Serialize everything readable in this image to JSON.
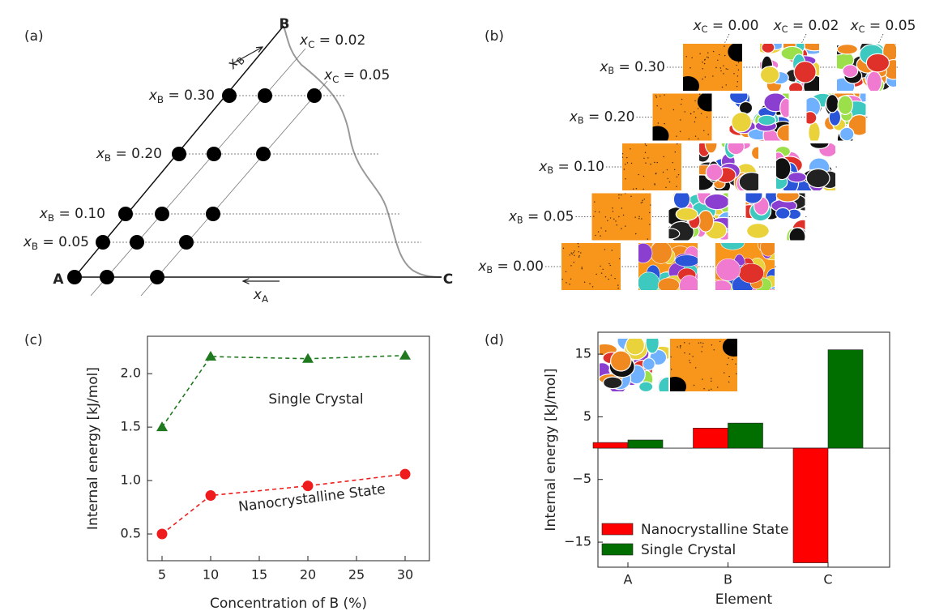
{
  "panel_labels": [
    "(a)",
    "(b)",
    "(c)",
    "(d)"
  ],
  "ternary": {
    "corners": [
      "A",
      "B",
      "C"
    ],
    "arrows": [
      {
        "symbol": "x",
        "subscript": "B"
      },
      {
        "symbol": "x",
        "subscript": "A"
      }
    ],
    "xb_labels": [
      {
        "symbol": "x",
        "subscript": "B",
        "text": " = 0.30"
      },
      {
        "symbol": "x",
        "subscript": "B",
        "text": " = 0.20"
      },
      {
        "symbol": "x",
        "subscript": "B",
        "text": " = 0.10"
      },
      {
        "symbol": "x",
        "subscript": "B",
        "text": " = 0.05"
      }
    ],
    "xc_labels": [
      {
        "symbol": "x",
        "subscript": "C",
        "text": " = 0.02"
      },
      {
        "symbol": "x",
        "subscript": "C",
        "text": " = 0.05"
      }
    ]
  },
  "micrographs": {
    "xb_labels": [
      {
        "symbol": "x",
        "subscript": "B",
        "text": " = 0.30"
      },
      {
        "symbol": "x",
        "subscript": "B",
        "text": " = 0.20"
      },
      {
        "symbol": "x",
        "subscript": "B",
        "text": " = 0.10"
      },
      {
        "symbol": "x",
        "subscript": "B",
        "text": " = 0.05"
      },
      {
        "symbol": "x",
        "subscript": "B",
        "text": " = 0.00"
      }
    ],
    "xc_labels": [
      {
        "symbol": "x",
        "subscript": "C",
        "text": " = 0.00"
      },
      {
        "symbol": "x",
        "subscript": "C",
        "text": " = 0.02"
      },
      {
        "symbol": "x",
        "subscript": "C",
        "text": " = 0.05"
      }
    ]
  },
  "chart_data": [
    {
      "type": "line",
      "x_label": "Concentration of B (%)",
      "y_label": "Internal energy [kJ/mol]",
      "x": [
        5,
        10,
        20,
        30
      ],
      "series": [
        {
          "name": "Single Crystal",
          "color": "#1f7a1f",
          "marker": "triangle",
          "values": [
            1.5,
            2.16,
            2.14,
            2.17
          ]
        },
        {
          "name": "Nanocrystalline State",
          "color": "#ee1c1c",
          "marker": "circle",
          "values": [
            0.5,
            0.86,
            0.95,
            1.06
          ]
        }
      ],
      "linestyle": "dashed",
      "xlim": [
        3.5,
        32.5
      ],
      "ylim": [
        0.25,
        2.35
      ],
      "xticks": [
        5,
        10,
        15,
        20,
        25,
        30
      ],
      "yticks": [
        0.5,
        {
          "value": 1.0,
          "label": "1.0"
        },
        1.5,
        {
          "value": 2.0,
          "label": "2.0"
        }
      ]
    },
    {
      "type": "bar",
      "x_label": "Element",
      "y_label": "Internal energy [kJ/mol]",
      "categories": [
        "A",
        "B",
        "C"
      ],
      "series": [
        {
          "name": "Nanocrystalline State",
          "color": "#ff0000",
          "values": [
            0.9,
            3.2,
            -18.3
          ]
        },
        {
          "name": "Single Crystal",
          "color": "#006f00",
          "values": [
            1.3,
            4.0,
            15.7
          ]
        }
      ],
      "ylim": [
        -19,
        18.5
      ],
      "yticks": [
        {
          "value": -15,
          "label": "−15"
        },
        {
          "value": -5,
          "label": "−5"
        },
        5,
        15
      ],
      "legend": "lower left"
    }
  ]
}
